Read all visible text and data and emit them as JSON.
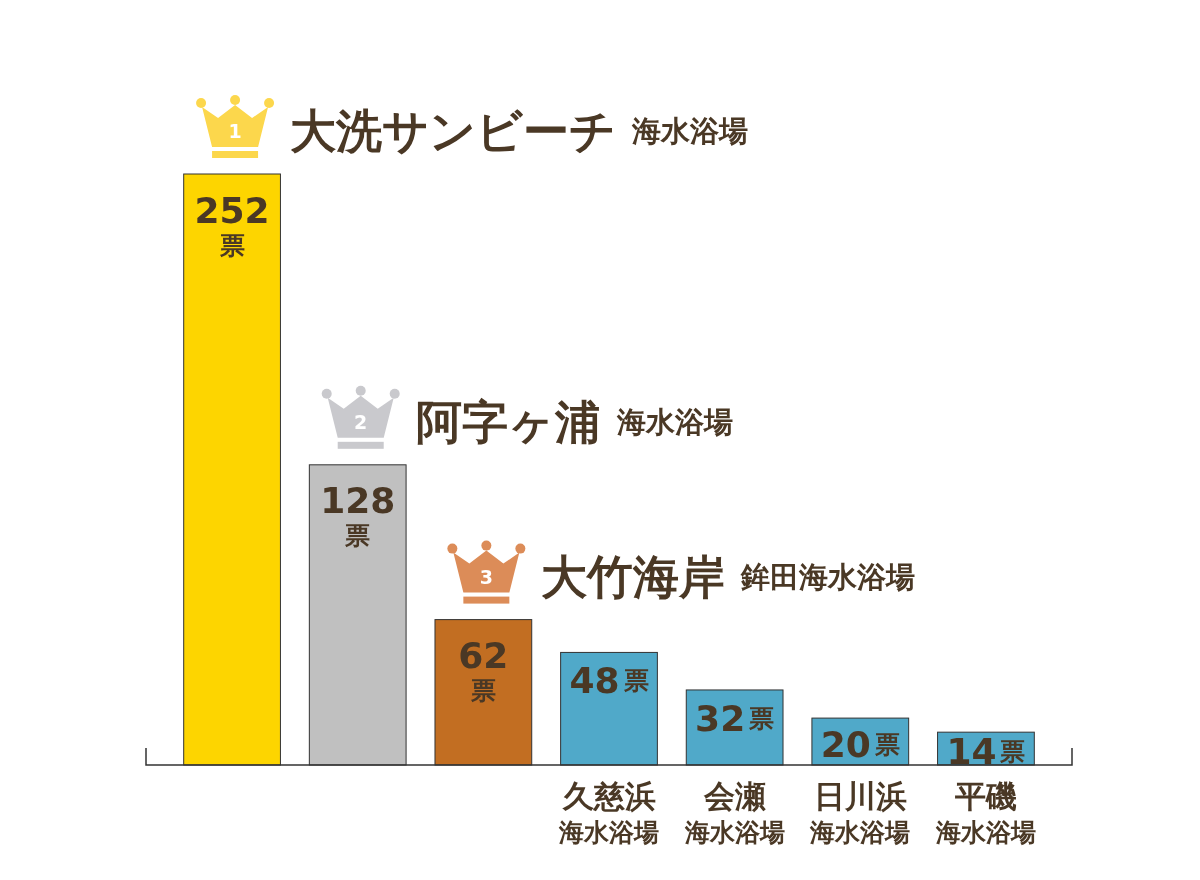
{
  "chart_data": {
    "type": "bar",
    "categories": [
      null,
      null,
      null,
      "久慈浜海水浴場",
      "会瀬海水浴場",
      "日川浜海水浴場",
      "平磯海水浴場"
    ],
    "values": [
      252,
      128,
      62,
      48,
      32,
      20,
      14
    ],
    "colors": [
      "#fdd500",
      "#c0c0c0",
      "#c26e22",
      "#50a9c9",
      "#50a9c9",
      "#50a9c9",
      "#50a9c9"
    ],
    "value_labels": [
      "252票",
      "128票",
      "62票",
      "48票",
      "32票",
      "20票",
      "14票"
    ],
    "annotations": [
      "1",
      "大洗サンビーチ 海水浴場",
      "2",
      "阿字ヶ浦 海水浴場",
      "3",
      "大竹海岸 鉾田海水浴場"
    ]
  }
}
